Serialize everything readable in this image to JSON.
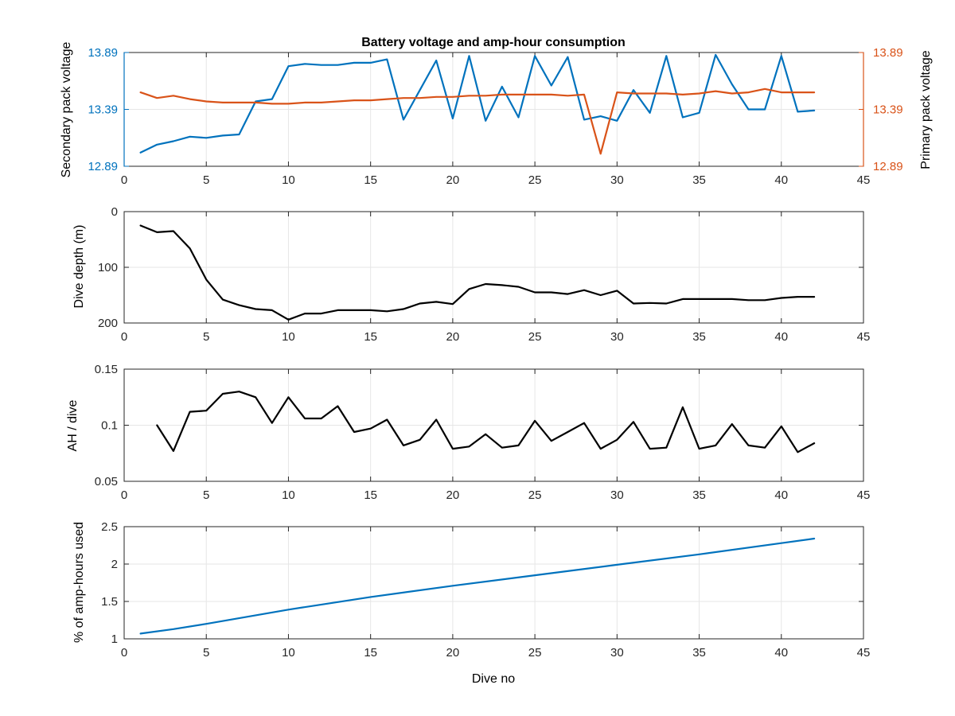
{
  "colors": {
    "blue": "#0072BD",
    "orange": "#D95319",
    "black": "#000000",
    "grid": "#e6e6e6",
    "axis": "#262626"
  },
  "chart_data": [
    {
      "type": "line",
      "title": "Battery voltage and amp-hour consumption",
      "xlabel": "",
      "ylabel": "Secondary pack voltage",
      "y2label": "Primary pack voltage",
      "xlim": [
        0,
        45
      ],
      "ylim": [
        12.89,
        13.89
      ],
      "y2lim": [
        12.89,
        13.89
      ],
      "xticks": [
        0,
        5,
        10,
        15,
        20,
        25,
        30,
        35,
        40,
        45
      ],
      "yticks": [
        12.89,
        13.39,
        13.89
      ],
      "y2ticks": [
        12.89,
        13.39,
        13.89
      ],
      "grid": true,
      "series": [
        {
          "axis": "left",
          "color": "blue",
          "x": [
            1,
            2,
            3,
            4,
            5,
            6,
            7,
            8,
            9,
            10,
            11,
            12,
            13,
            14,
            15,
            16,
            17,
            18,
            19,
            20,
            21,
            22,
            23,
            24,
            25,
            26,
            27,
            28,
            29,
            30,
            31,
            32,
            33,
            34,
            35,
            36,
            37,
            38,
            39,
            40,
            41,
            42
          ],
          "values": [
            13.01,
            13.08,
            13.11,
            13.15,
            13.14,
            13.16,
            13.17,
            13.46,
            13.48,
            13.77,
            13.79,
            13.78,
            13.78,
            13.8,
            13.8,
            13.83,
            13.3,
            13.56,
            13.82,
            13.31,
            13.86,
            13.29,
            13.59,
            13.32,
            13.86,
            13.6,
            13.85,
            13.3,
            13.33,
            13.29,
            13.56,
            13.36,
            13.86,
            13.32,
            13.36,
            13.87,
            13.61,
            13.39,
            13.39,
            13.86,
            13.37,
            13.38
          ]
        },
        {
          "axis": "right",
          "color": "orange",
          "x": [
            1,
            2,
            3,
            4,
            5,
            6,
            7,
            8,
            9,
            10,
            11,
            12,
            13,
            14,
            15,
            16,
            17,
            18,
            19,
            20,
            21,
            22,
            23,
            24,
            25,
            26,
            27,
            28,
            29,
            30,
            31,
            32,
            33,
            34,
            35,
            36,
            37,
            38,
            39,
            40,
            41,
            42
          ],
          "values": [
            13.54,
            13.49,
            13.51,
            13.48,
            13.46,
            13.45,
            13.45,
            13.45,
            13.44,
            13.44,
            13.45,
            13.45,
            13.46,
            13.47,
            13.47,
            13.48,
            13.49,
            13.49,
            13.5,
            13.5,
            13.51,
            13.51,
            13.52,
            13.52,
            13.52,
            13.52,
            13.51,
            13.52,
            13.0,
            13.54,
            13.53,
            13.53,
            13.53,
            13.52,
            13.53,
            13.55,
            13.53,
            13.54,
            13.57,
            13.54,
            13.54,
            13.54
          ]
        }
      ]
    },
    {
      "type": "line",
      "title": "",
      "xlabel": "",
      "ylabel": "Dive depth (m)",
      "xlim": [
        0,
        45
      ],
      "ylim": [
        0,
        200
      ],
      "y_reversed": true,
      "xticks": [
        0,
        5,
        10,
        15,
        20,
        25,
        30,
        35,
        40,
        45
      ],
      "yticks": [
        0,
        100,
        200
      ],
      "grid": true,
      "series": [
        {
          "color": "black",
          "x": [
            1,
            2,
            3,
            4,
            5,
            6,
            7,
            8,
            9,
            10,
            11,
            12,
            13,
            14,
            15,
            16,
            17,
            18,
            19,
            20,
            21,
            22,
            23,
            24,
            25,
            26,
            27,
            28,
            29,
            30,
            31,
            32,
            33,
            34,
            35,
            36,
            37,
            38,
            39,
            40,
            41,
            42
          ],
          "values": [
            25,
            37,
            35,
            66,
            122,
            158,
            168,
            175,
            177,
            194,
            183,
            183,
            177,
            177,
            177,
            179,
            175,
            165,
            162,
            166,
            139,
            130,
            132,
            135,
            145,
            145,
            148,
            141,
            150,
            142,
            165,
            164,
            165,
            157,
            157,
            157,
            157,
            159,
            159,
            155,
            153,
            153
          ]
        }
      ]
    },
    {
      "type": "line",
      "title": "",
      "xlabel": "",
      "ylabel": "AH / dive",
      "xlim": [
        0,
        45
      ],
      "ylim": [
        0.05,
        0.15
      ],
      "xticks": [
        0,
        5,
        10,
        15,
        20,
        25,
        30,
        35,
        40,
        45
      ],
      "yticks": [
        0.05,
        0.1,
        0.15
      ],
      "grid": true,
      "series": [
        {
          "color": "black",
          "x": [
            2,
            3,
            4,
            5,
            6,
            7,
            8,
            9,
            10,
            11,
            12,
            13,
            14,
            15,
            16,
            17,
            18,
            19,
            20,
            21,
            22,
            23,
            24,
            25,
            26,
            27,
            28,
            29,
            30,
            31,
            32,
            33,
            34,
            35,
            36,
            37,
            38,
            39,
            40,
            41,
            42
          ],
          "values": [
            0.1,
            0.077,
            0.112,
            0.113,
            0.128,
            0.13,
            0.125,
            0.102,
            0.125,
            0.106,
            0.106,
            0.117,
            0.094,
            0.097,
            0.105,
            0.082,
            0.087,
            0.105,
            0.079,
            0.081,
            0.092,
            0.08,
            0.082,
            0.104,
            0.086,
            0.094,
            0.102,
            0.079,
            0.087,
            0.103,
            0.079,
            0.08,
            0.116,
            0.079,
            0.082,
            0.101,
            0.082,
            0.08,
            0.099,
            0.076,
            0.084
          ]
        }
      ]
    },
    {
      "type": "line",
      "title": "",
      "xlabel": "Dive no",
      "ylabel": "% of amp-hours used",
      "xlim": [
        0,
        45
      ],
      "ylim": [
        1,
        2.5
      ],
      "xticks": [
        0,
        5,
        10,
        15,
        20,
        25,
        30,
        35,
        40,
        45
      ],
      "yticks": [
        1,
        1.5,
        2,
        2.5
      ],
      "grid": true,
      "series": [
        {
          "color": "blue",
          "x": [
            1,
            3,
            5,
            10,
            15,
            20,
            25,
            30,
            35,
            40,
            42
          ],
          "values": [
            1.07,
            1.13,
            1.2,
            1.39,
            1.56,
            1.71,
            1.85,
            1.99,
            2.13,
            2.28,
            2.34
          ]
        }
      ]
    }
  ]
}
